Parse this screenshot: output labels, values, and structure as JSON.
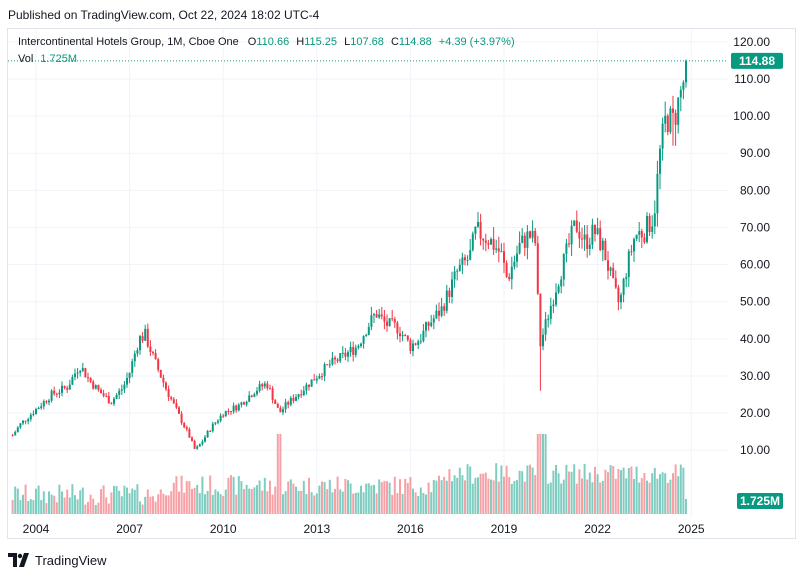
{
  "header": {
    "published": "Published on TradingView.com, Oct 22, 2024 18:02 UTC-4"
  },
  "legend": {
    "symbol": "Intercontinental Hotels Group, 1M, Cboe One",
    "o_label": "O",
    "o_value": "110.66",
    "h_label": "H",
    "h_value": "115.25",
    "l_label": "L",
    "l_value": "107.68",
    "c_label": "C",
    "c_value": "114.88",
    "change": "+4.39 (+3.97%)",
    "vol_label": "Vol",
    "vol_value": "1.725M"
  },
  "footer": {
    "brand": "TradingView",
    "logo_icon": "tradingview-logo-icon"
  },
  "colors": {
    "up": "#089981",
    "down": "#f23645",
    "vol_up": "#7fcdc1",
    "vol_down": "#f7a1a6",
    "grid": "#f0f3fa",
    "axis_text": "#131722"
  },
  "chart_data": {
    "type": "candlestick",
    "title": "Intercontinental Hotels Group, 1M, Cboe One",
    "interval": "1M",
    "y_axis": {
      "side": "right",
      "ticks": [
        "120.00",
        "110.00",
        "100.00",
        "90.00",
        "80.00",
        "70.00",
        "60.00",
        "50.00",
        "40.00",
        "30.00",
        "20.00",
        "10.00"
      ],
      "ylim": [
        0,
        123
      ]
    },
    "x_axis": {
      "ticks": [
        "2004",
        "2007",
        "2010",
        "2013",
        "2016",
        "2019",
        "2022",
        "2025"
      ],
      "xlim": [
        2003.25,
        2025.6
      ]
    },
    "last_price": "114.88",
    "last_volume": "1.725M",
    "grid": true,
    "price_anchors": [
      [
        2003.25,
        14
      ],
      [
        2003.5,
        17
      ],
      [
        2004.0,
        21
      ],
      [
        2004.5,
        25
      ],
      [
        2005.0,
        27
      ],
      [
        2005.4,
        33
      ],
      [
        2005.7,
        29
      ],
      [
        2006.0,
        26
      ],
      [
        2006.4,
        23
      ],
      [
        2006.8,
        27
      ],
      [
        2007.0,
        31
      ],
      [
        2007.3,
        40
      ],
      [
        2007.5,
        41
      ],
      [
        2007.8,
        34
      ],
      [
        2008.2,
        26
      ],
      [
        2008.6,
        19
      ],
      [
        2008.9,
        14
      ],
      [
        2009.1,
        10
      ],
      [
        2009.3,
        12
      ],
      [
        2009.6,
        16
      ],
      [
        2010.0,
        20
      ],
      [
        2010.5,
        22
      ],
      [
        2011.0,
        26
      ],
      [
        2011.4,
        28
      ],
      [
        2011.8,
        20
      ],
      [
        2012.0,
        22
      ],
      [
        2012.5,
        26
      ],
      [
        2013.0,
        30
      ],
      [
        2013.4,
        33
      ],
      [
        2013.8,
        35
      ],
      [
        2014.3,
        38
      ],
      [
        2014.6,
        43
      ],
      [
        2014.9,
        47
      ],
      [
        2015.2,
        44
      ],
      [
        2015.6,
        43
      ],
      [
        2016.0,
        38
      ],
      [
        2016.3,
        40
      ],
      [
        2016.6,
        44
      ],
      [
        2017.0,
        48
      ],
      [
        2017.5,
        58
      ],
      [
        2017.9,
        62
      ],
      [
        2018.1,
        69
      ],
      [
        2018.5,
        67
      ],
      [
        2018.9,
        63
      ],
      [
        2019.1,
        56
      ],
      [
        2019.5,
        65
      ],
      [
        2019.8,
        68
      ],
      [
        2020.0,
        66
      ],
      [
        2020.15,
        38
      ],
      [
        2020.4,
        46
      ],
      [
        2020.7,
        55
      ],
      [
        2021.0,
        63
      ],
      [
        2021.3,
        71
      ],
      [
        2021.6,
        66
      ],
      [
        2021.9,
        69
      ],
      [
        2022.2,
        64
      ],
      [
        2022.5,
        54
      ],
      [
        2022.7,
        49
      ],
      [
        2022.9,
        58
      ],
      [
        2023.2,
        68
      ],
      [
        2023.5,
        69
      ],
      [
        2023.8,
        73
      ],
      [
        2024.0,
        90
      ],
      [
        2024.2,
        100
      ],
      [
        2024.4,
        98
      ],
      [
        2024.6,
        104
      ],
      [
        2024.8,
        111
      ],
      [
        2024.85,
        114.88
      ]
    ]
  }
}
